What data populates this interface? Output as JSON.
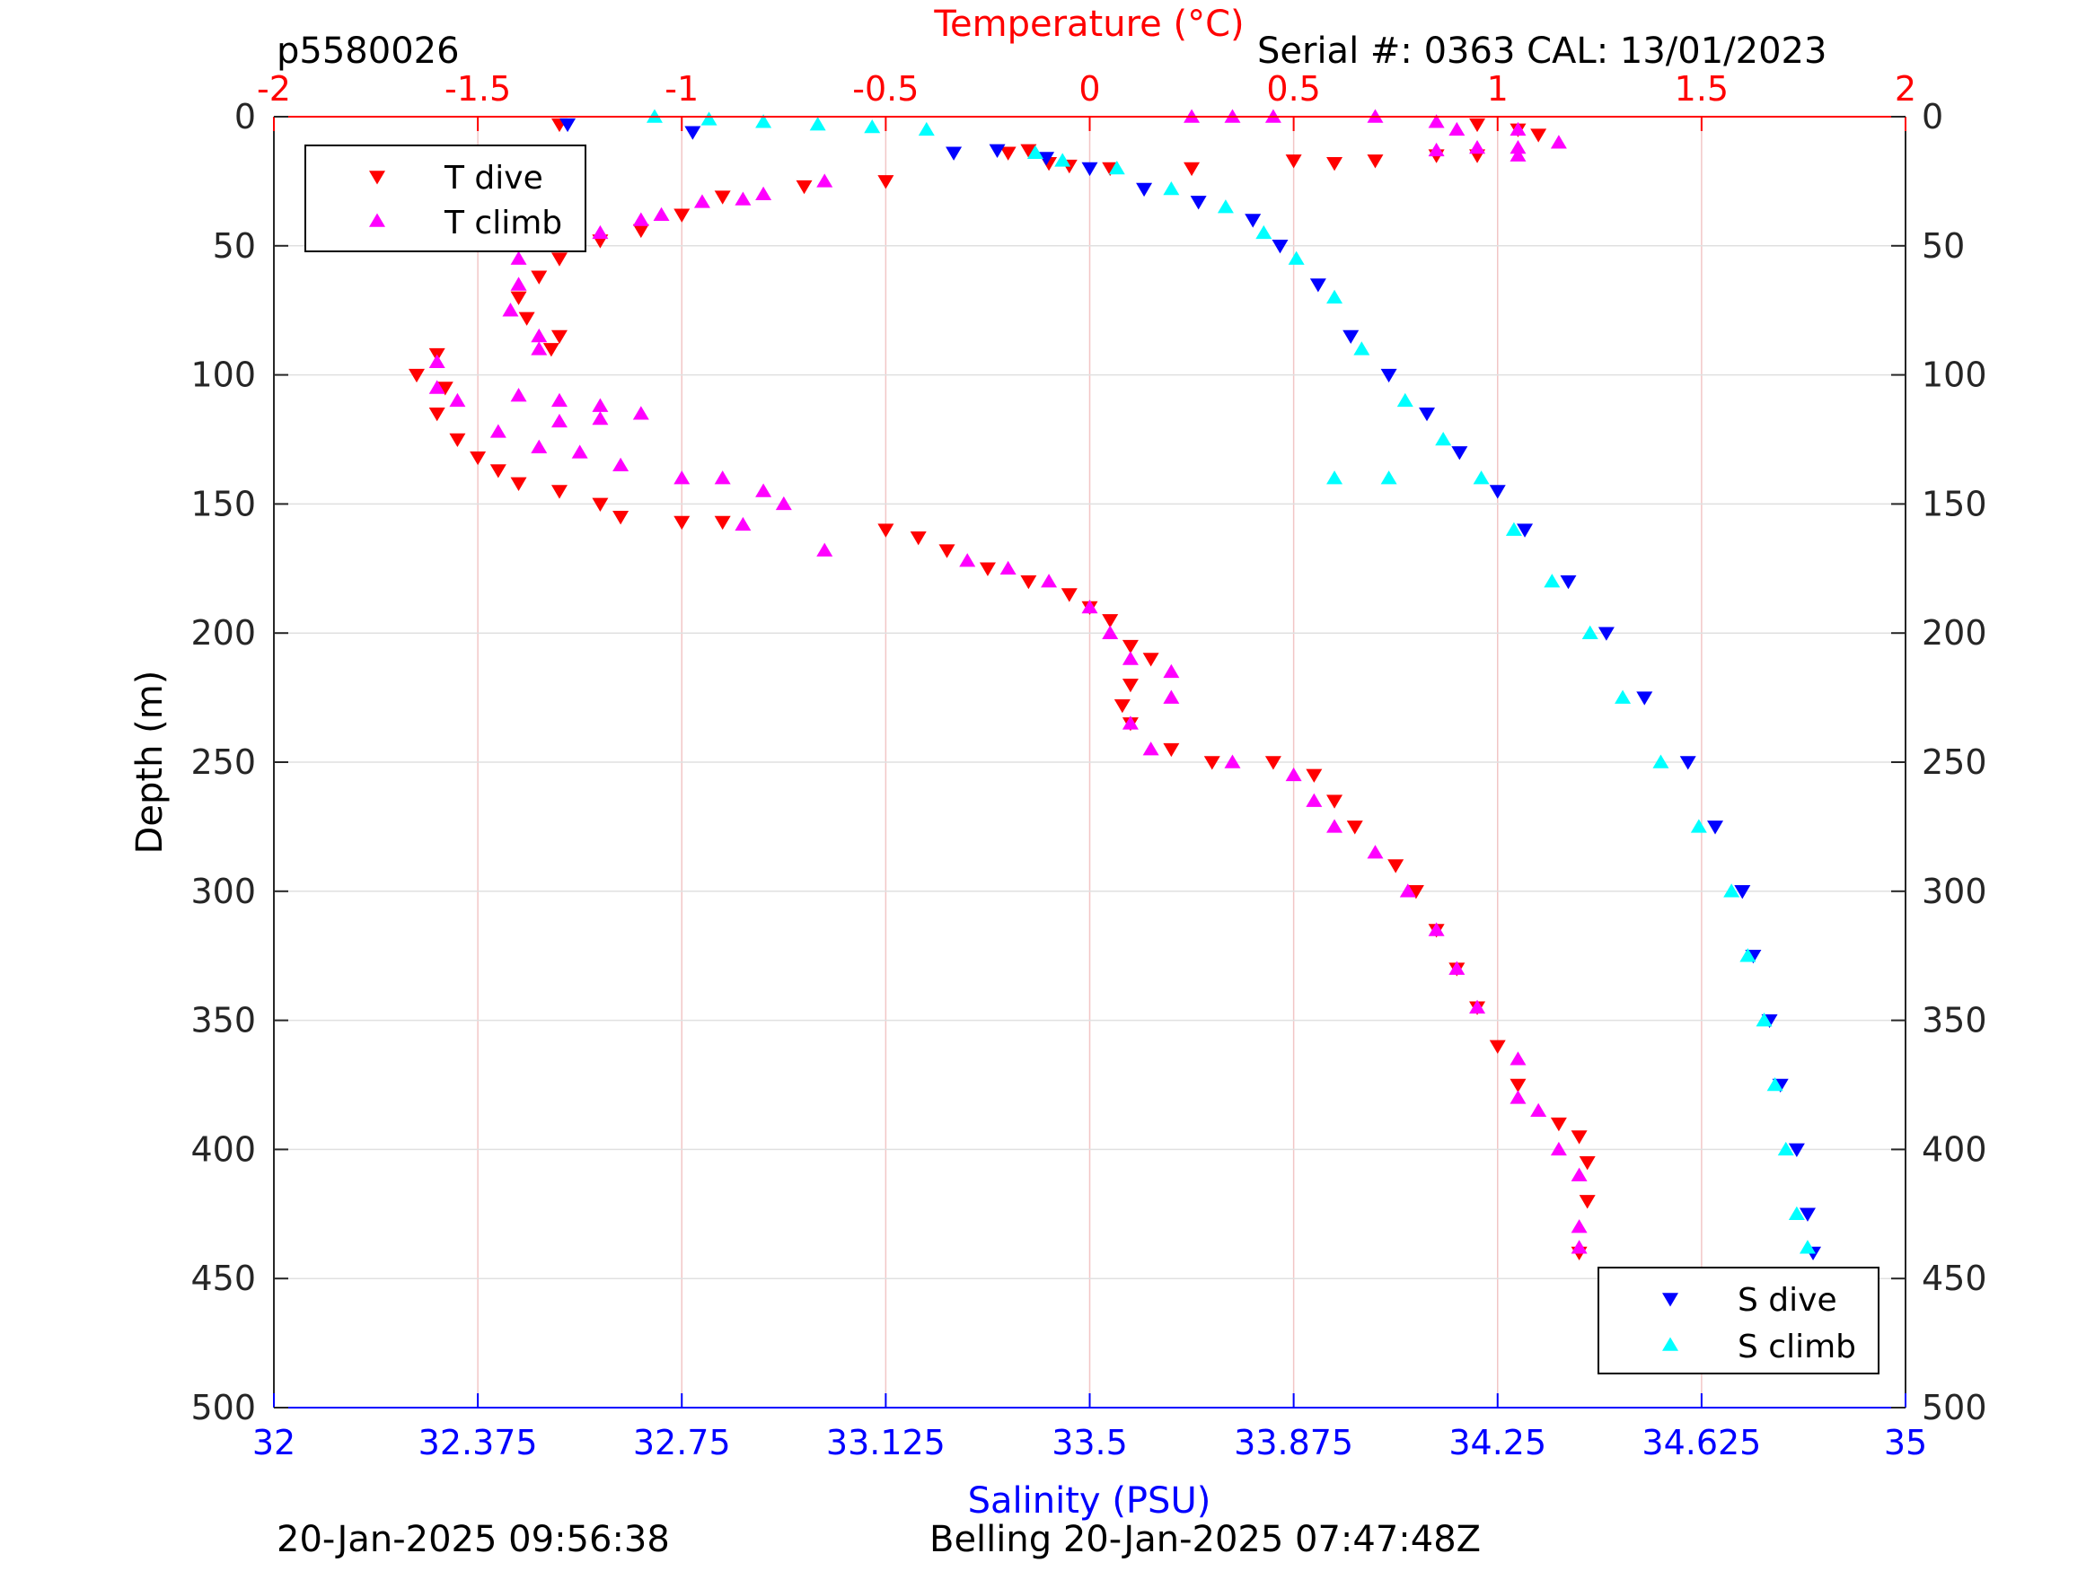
{
  "header": {
    "profile_id": "p5580026",
    "serial_info": "Serial #: 0363  CAL: 13/01/2023"
  },
  "footer": {
    "timestamp_left": "20-Jan-2025 09:56:38",
    "timestamp_right": "Belling 20-Jan-2025 07:47:48Z"
  },
  "chart_data": {
    "type": "scatter",
    "title": "",
    "grid": true,
    "axes": {
      "top": {
        "label": "Temperature (°C)",
        "min": -2,
        "max": 2,
        "ticks": [
          -2,
          -1.5,
          -1,
          -0.5,
          0,
          0.5,
          1,
          1.5,
          2
        ],
        "tick_labels": [
          "-2",
          "-1.5",
          "-1",
          "-0.5",
          "0",
          "0.5",
          "1",
          "1.5",
          "2"
        ],
        "color": "#ff0000"
      },
      "bottom": {
        "label": "Salinity (PSU)",
        "min": 32,
        "max": 35,
        "ticks": [
          32,
          32.375,
          32.75,
          33.125,
          33.5,
          33.875,
          34.25,
          34.625,
          35
        ],
        "tick_labels": [
          "32",
          "32.375",
          "32.75",
          "33.125",
          "33.5",
          "33.875",
          "34.25",
          "34.625",
          "35"
        ],
        "color": "#0000ff"
      },
      "left": {
        "label": "Depth (m)",
        "min": 0,
        "max": 500,
        "reversed": true,
        "ticks": [
          0,
          50,
          100,
          150,
          200,
          250,
          300,
          350,
          400,
          450,
          500
        ],
        "tick_labels": [
          "0",
          "50",
          "100",
          "150",
          "200",
          "250",
          "300",
          "350",
          "400",
          "450",
          "500"
        ]
      },
      "right": {
        "min": 0,
        "max": 500,
        "reversed": true,
        "ticks": [
          0,
          50,
          100,
          150,
          200,
          250,
          300,
          350,
          400,
          450,
          500
        ],
        "tick_labels": [
          "0",
          "50",
          "100",
          "150",
          "200",
          "250",
          "300",
          "350",
          "400",
          "450",
          "500"
        ]
      }
    },
    "legends": [
      {
        "position": "top-left",
        "entries": [
          {
            "label": "T dive",
            "series": "T dive"
          },
          {
            "label": "T climb",
            "series": "T climb"
          }
        ]
      },
      {
        "position": "bottom-right",
        "entries": [
          {
            "label": "S dive",
            "series": "S dive"
          },
          {
            "label": "S climb",
            "series": "S climb"
          }
        ]
      }
    ],
    "series": [
      {
        "name": "T dive",
        "axis": "top",
        "marker": "triangle-down",
        "color": "#ff0000",
        "points": [
          [
            -1.3,
            3
          ],
          [
            -0.2,
            14
          ],
          [
            -0.15,
            13
          ],
          [
            -0.1,
            18
          ],
          [
            -0.05,
            19
          ],
          [
            0.05,
            20
          ],
          [
            0.25,
            20
          ],
          [
            0.95,
            3
          ],
          [
            1.05,
            5
          ],
          [
            1.1,
            7
          ],
          [
            0.95,
            15
          ],
          [
            0.85,
            15
          ],
          [
            0.7,
            17
          ],
          [
            0.5,
            17
          ],
          [
            0.6,
            18
          ],
          [
            -0.5,
            25
          ],
          [
            -0.7,
            27
          ],
          [
            -0.9,
            31
          ],
          [
            -1.0,
            38
          ],
          [
            -1.1,
            44
          ],
          [
            -1.2,
            48
          ],
          [
            -1.3,
            55
          ],
          [
            -1.35,
            62
          ],
          [
            -1.4,
            70
          ],
          [
            -1.38,
            78
          ],
          [
            -1.3,
            85
          ],
          [
            -1.32,
            90
          ],
          [
            -1.6,
            92
          ],
          [
            -1.65,
            100
          ],
          [
            -1.58,
            105
          ],
          [
            -1.6,
            115
          ],
          [
            -1.55,
            125
          ],
          [
            -1.5,
            132
          ],
          [
            -1.45,
            137
          ],
          [
            -1.4,
            142
          ],
          [
            -1.3,
            145
          ],
          [
            -1.2,
            150
          ],
          [
            -1.15,
            155
          ],
          [
            -1.0,
            157
          ],
          [
            -0.9,
            157
          ],
          [
            -0.5,
            160
          ],
          [
            -0.42,
            163
          ],
          [
            -0.35,
            168
          ],
          [
            -0.25,
            175
          ],
          [
            -0.15,
            180
          ],
          [
            -0.05,
            185
          ],
          [
            0.0,
            190
          ],
          [
            0.05,
            195
          ],
          [
            0.1,
            205
          ],
          [
            0.15,
            210
          ],
          [
            0.1,
            220
          ],
          [
            0.08,
            228
          ],
          [
            0.1,
            235
          ],
          [
            0.2,
            245
          ],
          [
            0.3,
            250
          ],
          [
            0.45,
            250
          ],
          [
            0.55,
            255
          ],
          [
            0.6,
            265
          ],
          [
            0.65,
            275
          ],
          [
            0.75,
            290
          ],
          [
            0.8,
            300
          ],
          [
            0.85,
            315
          ],
          [
            0.9,
            330
          ],
          [
            0.95,
            345
          ],
          [
            1.0,
            360
          ],
          [
            1.05,
            375
          ],
          [
            1.15,
            390
          ],
          [
            1.2,
            395
          ],
          [
            1.22,
            405
          ],
          [
            1.22,
            420
          ],
          [
            1.2,
            440
          ]
        ]
      },
      {
        "name": "T climb",
        "axis": "top",
        "marker": "triangle-up",
        "color": "#ff00ff",
        "points": [
          [
            0.25,
            0
          ],
          [
            0.35,
            0
          ],
          [
            0.45,
            0
          ],
          [
            0.7,
            0
          ],
          [
            0.85,
            2
          ],
          [
            0.9,
            5
          ],
          [
            1.05,
            5
          ],
          [
            1.15,
            10
          ],
          [
            1.05,
            12
          ],
          [
            0.95,
            12
          ],
          [
            0.85,
            13
          ],
          [
            1.05,
            15
          ],
          [
            -0.65,
            25
          ],
          [
            -0.8,
            30
          ],
          [
            -0.85,
            32
          ],
          [
            -0.95,
            33
          ],
          [
            -1.05,
            38
          ],
          [
            -1.1,
            40
          ],
          [
            -1.2,
            45
          ],
          [
            -1.3,
            47
          ],
          [
            -1.35,
            50
          ],
          [
            -1.4,
            55
          ],
          [
            -1.4,
            65
          ],
          [
            -1.42,
            75
          ],
          [
            -1.35,
            85
          ],
          [
            -1.35,
            90
          ],
          [
            -1.6,
            95
          ],
          [
            -1.6,
            105
          ],
          [
            -1.55,
            110
          ],
          [
            -1.4,
            108
          ],
          [
            -1.3,
            110
          ],
          [
            -1.2,
            112
          ],
          [
            -1.1,
            115
          ],
          [
            -1.2,
            117
          ],
          [
            -1.3,
            118
          ],
          [
            -1.45,
            122
          ],
          [
            -1.35,
            128
          ],
          [
            -1.25,
            130
          ],
          [
            -1.15,
            135
          ],
          [
            -1.0,
            140
          ],
          [
            -0.9,
            140
          ],
          [
            -0.8,
            145
          ],
          [
            -0.75,
            150
          ],
          [
            -0.85,
            158
          ],
          [
            -0.65,
            168
          ],
          [
            -0.3,
            172
          ],
          [
            -0.2,
            175
          ],
          [
            -0.1,
            180
          ],
          [
            0.0,
            190
          ],
          [
            0.05,
            200
          ],
          [
            0.1,
            210
          ],
          [
            0.2,
            215
          ],
          [
            0.2,
            225
          ],
          [
            0.1,
            235
          ],
          [
            0.15,
            245
          ],
          [
            0.35,
            250
          ],
          [
            0.5,
            255
          ],
          [
            0.55,
            265
          ],
          [
            0.6,
            275
          ],
          [
            0.7,
            285
          ],
          [
            0.78,
            300
          ],
          [
            0.85,
            315
          ],
          [
            0.9,
            330
          ],
          [
            0.95,
            345
          ],
          [
            1.05,
            365
          ],
          [
            1.05,
            380
          ],
          [
            1.1,
            385
          ],
          [
            1.15,
            400
          ],
          [
            1.2,
            410
          ],
          [
            1.2,
            430
          ],
          [
            1.2,
            438
          ]
        ]
      },
      {
        "name": "S dive",
        "axis": "bottom",
        "marker": "triangle-down",
        "color": "#0000ff",
        "points": [
          [
            32.54,
            3
          ],
          [
            32.77,
            6
          ],
          [
            33.25,
            14
          ],
          [
            33.33,
            13
          ],
          [
            33.42,
            16
          ],
          [
            33.5,
            20
          ],
          [
            33.6,
            28
          ],
          [
            33.7,
            33
          ],
          [
            33.8,
            40
          ],
          [
            33.85,
            50
          ],
          [
            33.92,
            65
          ],
          [
            33.98,
            85
          ],
          [
            34.05,
            100
          ],
          [
            34.12,
            115
          ],
          [
            34.18,
            130
          ],
          [
            34.25,
            145
          ],
          [
            34.3,
            160
          ],
          [
            34.38,
            180
          ],
          [
            34.45,
            200
          ],
          [
            34.52,
            225
          ],
          [
            34.6,
            250
          ],
          [
            34.65,
            275
          ],
          [
            34.7,
            300
          ],
          [
            34.72,
            325
          ],
          [
            34.75,
            350
          ],
          [
            34.77,
            375
          ],
          [
            34.8,
            400
          ],
          [
            34.82,
            425
          ],
          [
            34.83,
            440
          ]
        ]
      },
      {
        "name": "S climb",
        "axis": "bottom",
        "marker": "triangle-up",
        "color": "#00ffff",
        "points": [
          [
            32.7,
            0
          ],
          [
            32.8,
            1
          ],
          [
            32.9,
            2
          ],
          [
            33.0,
            3
          ],
          [
            33.1,
            4
          ],
          [
            33.2,
            5
          ],
          [
            33.4,
            14
          ],
          [
            33.45,
            17
          ],
          [
            33.55,
            20
          ],
          [
            33.65,
            28
          ],
          [
            33.75,
            35
          ],
          [
            33.82,
            45
          ],
          [
            33.88,
            55
          ],
          [
            33.95,
            70
          ],
          [
            34.0,
            90
          ],
          [
            34.08,
            110
          ],
          [
            34.15,
            125
          ],
          [
            33.95,
            140
          ],
          [
            34.05,
            140
          ],
          [
            34.22,
            140
          ],
          [
            34.28,
            160
          ],
          [
            34.35,
            180
          ],
          [
            34.42,
            200
          ],
          [
            34.48,
            225
          ],
          [
            34.55,
            250
          ],
          [
            34.62,
            275
          ],
          [
            34.68,
            300
          ],
          [
            34.71,
            325
          ],
          [
            34.74,
            350
          ],
          [
            34.76,
            375
          ],
          [
            34.78,
            400
          ],
          [
            34.8,
            425
          ],
          [
            34.82,
            438
          ]
        ]
      }
    ]
  }
}
